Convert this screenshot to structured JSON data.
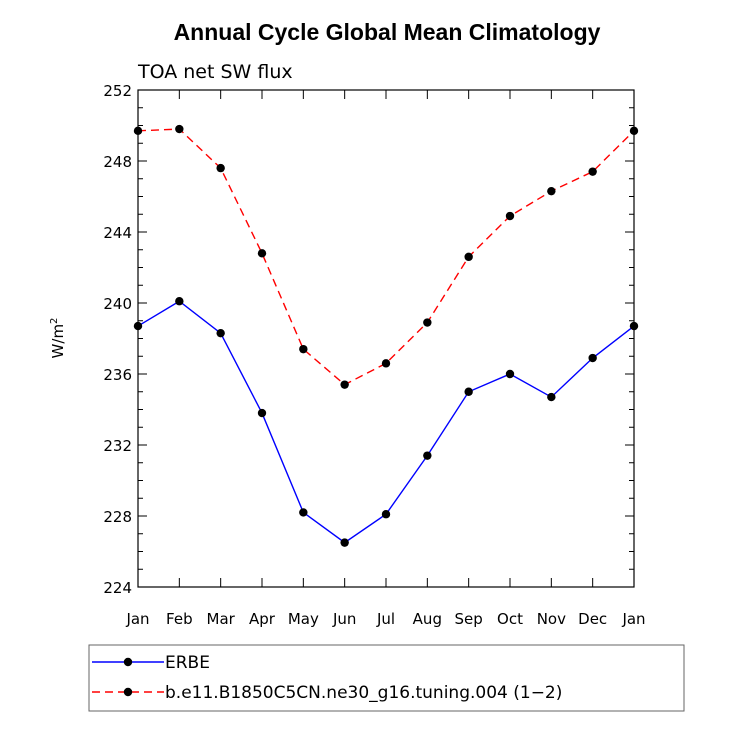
{
  "chart_data": {
    "type": "line",
    "title": "Annual Cycle Global Mean Climatology",
    "subtitle": "TOA net SW flux",
    "ylabel": "W/m",
    "ylabel_superscript": "2",
    "xlabel": "",
    "categories": [
      "Jan",
      "Feb",
      "Mar",
      "Apr",
      "May",
      "Jun",
      "Jul",
      "Aug",
      "Sep",
      "Oct",
      "Nov",
      "Dec",
      "Jan"
    ],
    "ylim": [
      224,
      252
    ],
    "yticks": [
      224,
      228,
      232,
      236,
      240,
      244,
      248,
      252
    ],
    "ytick_labels": [
      "224",
      "228",
      "232",
      "236",
      "240",
      "244",
      "248",
      "252"
    ],
    "grid": false,
    "legend_placement": "bottom",
    "series": [
      {
        "name": "ERBE",
        "color": "#0000ff",
        "dash": "solid",
        "marker": "filled-circle",
        "values": [
          238.7,
          240.1,
          238.3,
          233.8,
          228.2,
          226.5,
          228.1,
          231.4,
          235.0,
          236.0,
          234.7,
          236.9,
          238.7
        ]
      },
      {
        "name": "b.e11.B1850C5CN.ne30_g16.tuning.004 (1−2)",
        "color": "#ff0000",
        "dash": "dashed",
        "marker": "filled-circle",
        "values": [
          249.7,
          249.8,
          247.6,
          242.8,
          237.4,
          235.4,
          236.6,
          238.9,
          242.6,
          244.9,
          246.3,
          247.4,
          249.7
        ]
      }
    ]
  }
}
